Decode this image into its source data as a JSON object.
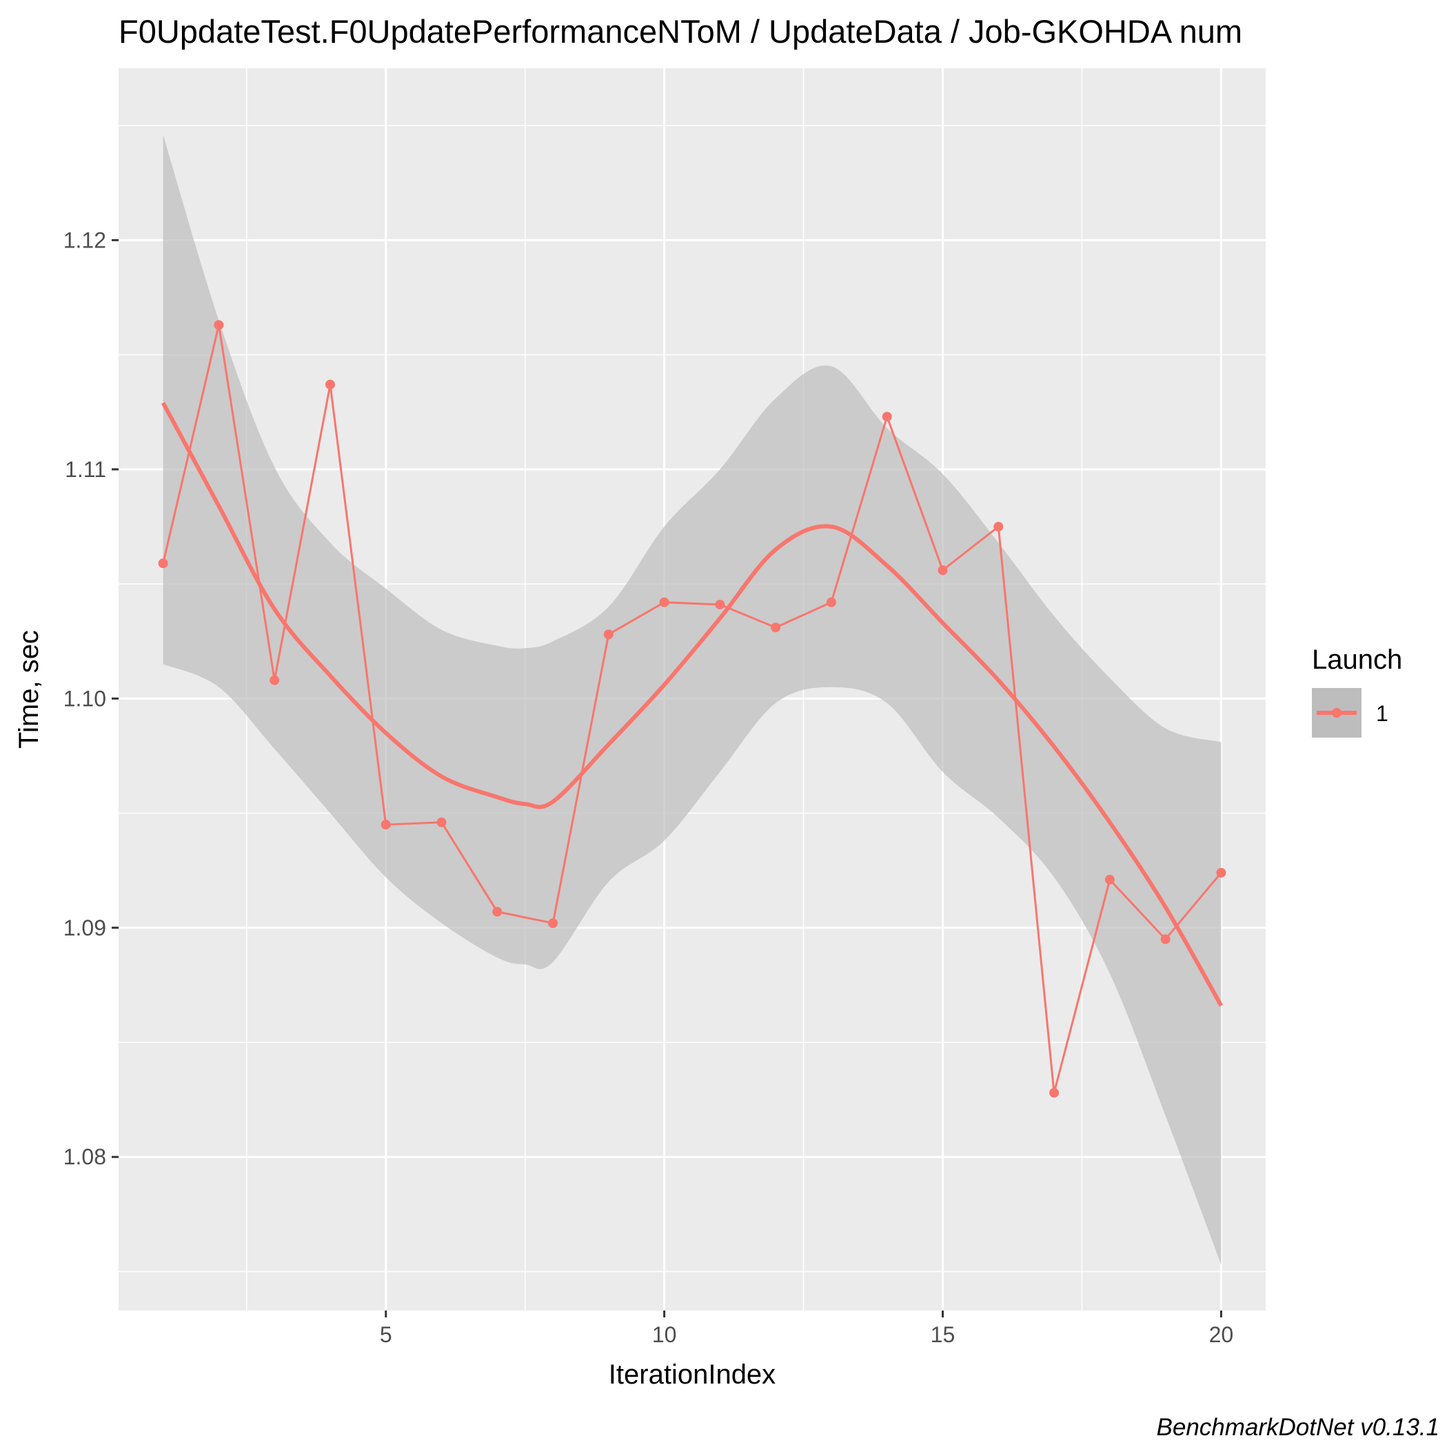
{
  "chart_data": {
    "type": "line",
    "title": "F0UpdateTest.F0UpdatePerformanceNToM / UpdateData / Job-GKOHDA num",
    "xlabel": "IterationIndex",
    "ylabel": "Time, sec",
    "caption": "BenchmarkDotNet v0.13.1",
    "xlim": [
      0.2,
      20.8
    ],
    "ylim": [
      1.0733,
      1.1275
    ],
    "x_ticks": [
      5,
      10,
      15,
      20
    ],
    "x_tick_labels": [
      "5",
      "10",
      "15",
      "20"
    ],
    "y_ticks": [
      1.08,
      1.09,
      1.1,
      1.11,
      1.12
    ],
    "y_tick_labels": [
      "1.08",
      "1.09",
      "1.10",
      "1.11",
      "1.12"
    ],
    "grid": true,
    "legend": {
      "title": "Launch",
      "placement": "right",
      "entries": [
        "1"
      ]
    },
    "colors": {
      "series": "#f8766d",
      "panel_background": "#ebebeb",
      "grid": "#ffffff",
      "ribbon": "#bdbdbd"
    },
    "series": [
      {
        "name": "1",
        "x": [
          1,
          2,
          3,
          4,
          5,
          6,
          7,
          8,
          9,
          10,
          11,
          12,
          13,
          14,
          15,
          16,
          17,
          18,
          19,
          20
        ],
        "values": [
          1.1059,
          1.1163,
          1.1008,
          1.1137,
          1.0945,
          1.0946,
          1.0907,
          1.0902,
          1.1028,
          1.1042,
          1.1041,
          1.1031,
          1.1042,
          1.1123,
          1.1056,
          1.1075,
          1.0828,
          1.0921,
          1.0895,
          1.0924
        ]
      }
    ],
    "smooth": {
      "x": [
        1,
        2,
        3,
        4,
        5,
        6,
        7,
        7.5,
        8,
        9,
        10,
        11,
        12,
        13,
        14,
        15,
        16,
        17,
        18,
        19,
        20
      ],
      "y": [
        1.1129,
        1.1084,
        1.1039,
        1.101,
        1.0985,
        1.0966,
        1.0957,
        1.0954,
        1.0955,
        1.098,
        1.1006,
        1.1035,
        1.1065,
        1.1075,
        1.1058,
        1.1033,
        1.1008,
        1.0979,
        1.0946,
        1.0909,
        1.0866
      ],
      "lower": [
        1.1015,
        1.1005,
        1.0978,
        1.095,
        1.0922,
        1.0902,
        1.0887,
        1.0884,
        1.0885,
        1.092,
        1.0938,
        1.0968,
        1.0998,
        1.1005,
        1.0998,
        1.0968,
        1.0948,
        1.0922,
        1.088,
        1.0818,
        1.0753
      ],
      "upper": [
        1.1246,
        1.1165,
        1.1101,
        1.1068,
        1.1048,
        1.103,
        1.1023,
        1.1022,
        1.1025,
        1.104,
        1.1075,
        1.11,
        1.1131,
        1.1145,
        1.1118,
        1.1098,
        1.1068,
        1.1036,
        1.1009,
        1.0987,
        1.0981
      ]
    }
  }
}
